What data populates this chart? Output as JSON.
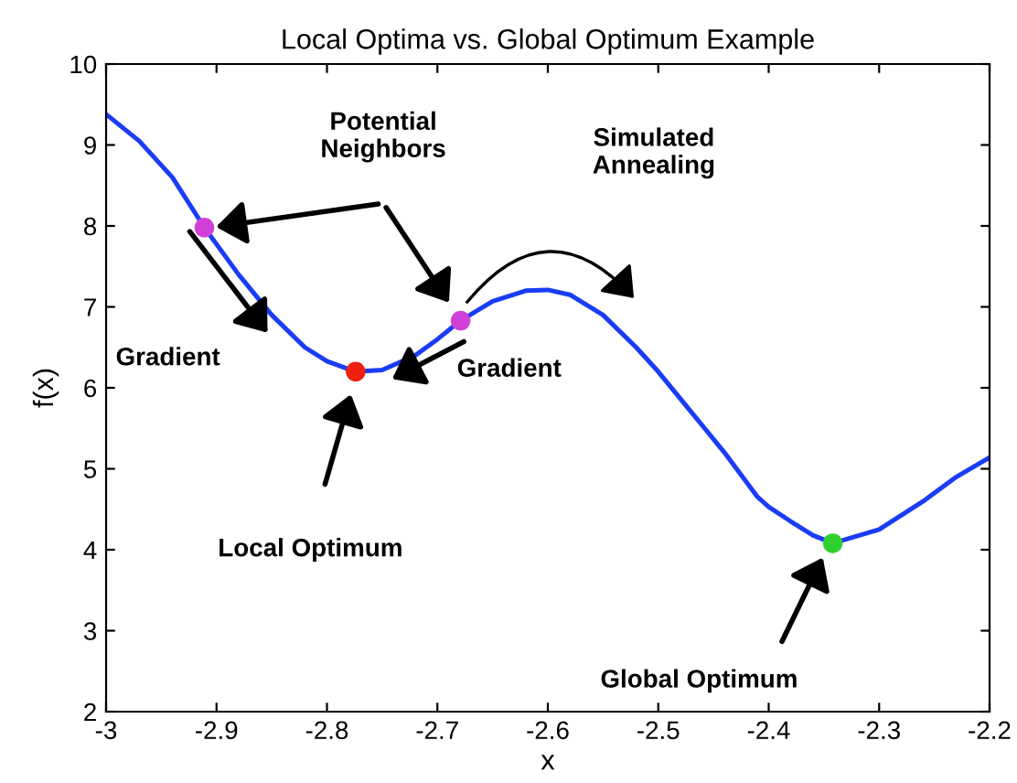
{
  "chart_data": {
    "type": "line",
    "title": "Local Optima vs. Global Optimum Example",
    "xlabel": "x",
    "ylabel": "f(x)",
    "xlim": [
      -3,
      -2.2
    ],
    "xticks": [
      -3,
      -2.9,
      -2.8,
      -2.7,
      -2.6,
      -2.5,
      -2.4,
      -2.3,
      -2.2
    ],
    "ylim": [
      2,
      10
    ],
    "yticks": [
      2,
      3,
      4,
      5,
      6,
      7,
      8,
      9,
      10
    ],
    "grid": false,
    "legend": false,
    "series": [
      {
        "color": "#1a3cf5",
        "line_style": "solid",
        "marker": "none",
        "x": [
          -3,
          -2.97,
          -2.94,
          -2.911,
          -2.88,
          -2.85,
          -2.82,
          -2.8,
          -2.774,
          -2.75,
          -2.72,
          -2.7,
          -2.679,
          -2.65,
          -2.62,
          -2.6,
          -2.58,
          -2.55,
          -2.52,
          -2.5,
          -2.47,
          -2.44,
          -2.41,
          -2.4,
          -2.38,
          -2.36,
          -2.342,
          -2.3,
          -2.26,
          -2.23,
          -2.2
        ],
        "values": [
          9.38,
          9.05,
          8.6,
          7.98,
          7.4,
          6.9,
          6.5,
          6.33,
          6.2,
          6.22,
          6.4,
          6.6,
          6.83,
          7.07,
          7.2,
          7.21,
          7.15,
          6.9,
          6.5,
          6.2,
          5.7,
          5.2,
          4.65,
          4.53,
          4.35,
          4.18,
          4.08,
          4.25,
          4.6,
          4.9,
          5.14
        ]
      },
      {
        "type": "scatter",
        "marker": "circle",
        "colors": [
          "#d040d8",
          "#f02010",
          "#d040d8",
          "#30d030"
        ],
        "x": [
          -2.911,
          -2.774,
          -2.679,
          -2.342
        ],
        "values": [
          7.98,
          6.2,
          6.83,
          4.08
        ]
      }
    ],
    "annotations": [
      "Potential\nNeighbors",
      "Gradient",
      "Gradient",
      "Local Optimum",
      "Simulated\nAnnealing",
      "Global Optimum"
    ]
  }
}
